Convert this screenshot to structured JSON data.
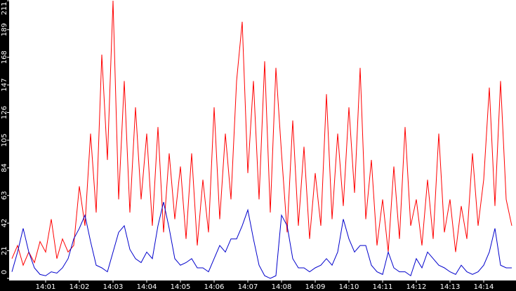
{
  "chart_data": {
    "type": "line",
    "categories": [
      null,
      null,
      null,
      null,
      null,
      null,
      "14:01",
      null,
      null,
      null,
      null,
      null,
      "14:02",
      null,
      null,
      null,
      null,
      null,
      "14:03",
      null,
      null,
      null,
      null,
      null,
      "14:04",
      null,
      null,
      null,
      null,
      null,
      "14:05",
      null,
      null,
      null,
      null,
      null,
      "14:06",
      null,
      null,
      null,
      null,
      null,
      "14:07",
      null,
      null,
      null,
      null,
      null,
      "14:08",
      null,
      null,
      null,
      null,
      null,
      "14:09",
      null,
      null,
      null,
      null,
      null,
      "14:10",
      null,
      null,
      null,
      null,
      null,
      "14:11",
      null,
      null,
      null,
      null,
      null,
      "14:12",
      null,
      null,
      null,
      null,
      null,
      "14:13",
      null,
      null,
      null,
      null,
      null,
      "14:14",
      null,
      null,
      null,
      null,
      null
    ],
    "series": [
      {
        "color": "#ff0000",
        "values": [
          15,
          25,
          10,
          20,
          12,
          28,
          20,
          45,
          15,
          30,
          20,
          25,
          70,
          40,
          110,
          50,
          170,
          90,
          211,
          60,
          150,
          50,
          130,
          60,
          110,
          40,
          115,
          35,
          95,
          45,
          85,
          30,
          95,
          25,
          75,
          35,
          130,
          45,
          110,
          60,
          150,
          195,
          80,
          150,
          60,
          165,
          50,
          160,
          95,
          35,
          120,
          40,
          100,
          30,
          80,
          40,
          140,
          45,
          110,
          55,
          130,
          65,
          160,
          45,
          90,
          25,
          60,
          20,
          85,
          30,
          115,
          40,
          60,
          25,
          75,
          30,
          110,
          35,
          60,
          20,
          55,
          30,
          95,
          40,
          75,
          145,
          55,
          150,
          60,
          40
        ]
      },
      {
        "color": "#0000cc",
        "values": [
          5,
          20,
          38,
          20,
          8,
          3,
          2,
          5,
          4,
          8,
          15,
          30,
          38,
          48,
          28,
          10,
          8,
          5,
          20,
          35,
          40,
          22,
          15,
          12,
          20,
          15,
          40,
          58,
          38,
          15,
          10,
          12,
          15,
          8,
          8,
          5,
          15,
          25,
          20,
          30,
          30,
          40,
          52,
          30,
          10,
          2,
          0,
          2,
          48,
          40,
          15,
          8,
          8,
          5,
          8,
          10,
          15,
          10,
          20,
          45,
          30,
          20,
          25,
          25,
          10,
          5,
          3,
          20,
          8,
          5,
          5,
          2,
          15,
          8,
          20,
          15,
          10,
          8,
          5,
          3,
          10,
          5,
          3,
          5,
          10,
          20,
          38,
          10,
          8,
          8
        ]
      }
    ],
    "ylim": [
      0,
      211
    ],
    "yticks": [
      0,
      21,
      42,
      63,
      84,
      105,
      126,
      147,
      168,
      189,
      211
    ]
  }
}
